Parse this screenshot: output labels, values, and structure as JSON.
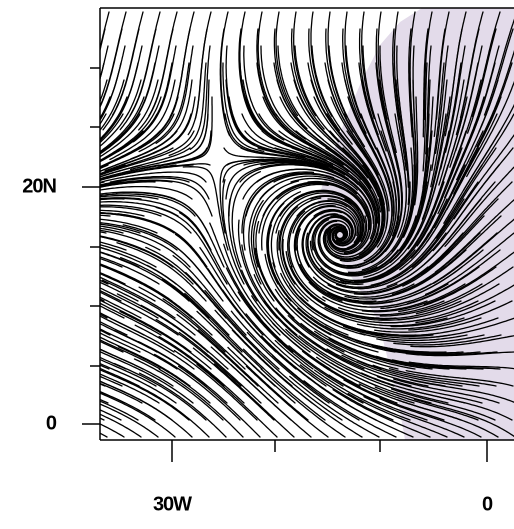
{
  "axes": {
    "y_labels": [
      "20N",
      "0"
    ],
    "x_labels": [
      "30W",
      "0"
    ]
  }
}
